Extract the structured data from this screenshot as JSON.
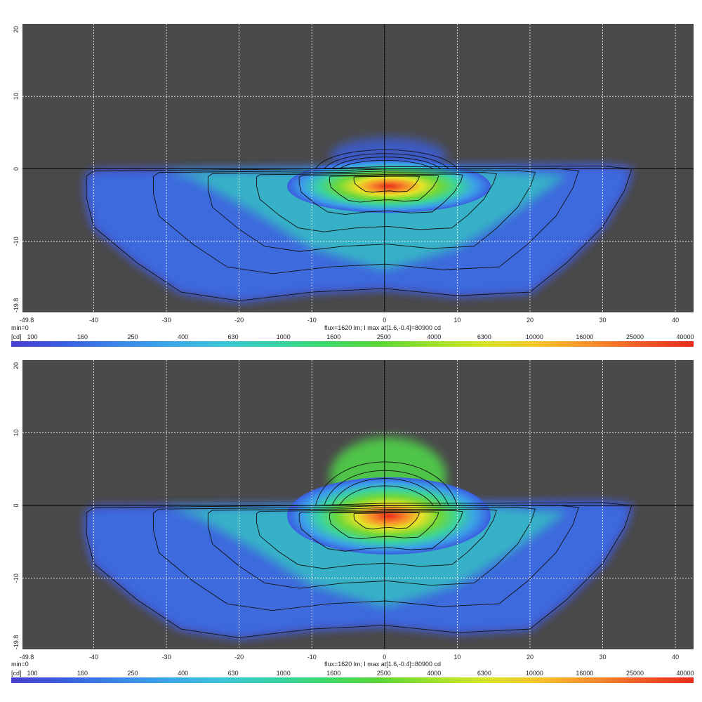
{
  "chart_data": [
    {
      "type": "heatmap",
      "panel": "top",
      "x_ticks": [
        "-49.8",
        "-40",
        "-30",
        "-20",
        "-10",
        "0",
        "10",
        "20",
        "30",
        "40"
      ],
      "y_ticks": [
        "20",
        "10",
        "0",
        "-10",
        "-19.8"
      ],
      "xlim": [
        -49.8,
        42.5
      ],
      "ylim": [
        -19.8,
        20
      ],
      "grid": true,
      "footer_min": "min=0",
      "footer_flux": "flux=1620 lm; I max at[1.6,-0.4]=80900 cd",
      "legend_unit": "[cd]",
      "legend_ticks": [
        "100",
        "160",
        "250",
        "400",
        "630",
        "1000",
        "1600",
        "2500",
        "4000",
        "6300",
        "10000",
        "16000",
        "25000",
        "40000"
      ],
      "hotspot": {
        "x": 1.6,
        "y": -0.4
      },
      "upper_lobe_top": 3.5,
      "colors": {
        "background": "#4a4a4a",
        "grid": "#ffffff"
      }
    },
    {
      "type": "heatmap",
      "panel": "bottom",
      "x_ticks": [
        "-49.8",
        "-40",
        "-30",
        "-20",
        "-10",
        "0",
        "10",
        "20",
        "30",
        "40"
      ],
      "y_ticks": [
        "20",
        "10",
        "0",
        "-10",
        "-19.8"
      ],
      "xlim": [
        -49.8,
        42.5
      ],
      "ylim": [
        -19.8,
        20
      ],
      "grid": true,
      "footer_min": "min=0",
      "footer_flux": "flux=1620 lm; I max at[1.6,-0.4]=80900 cd",
      "legend_unit": "[cd]",
      "legend_ticks": [
        "100",
        "160",
        "250",
        "400",
        "630",
        "1000",
        "1600",
        "2500",
        "4000",
        "6300",
        "10000",
        "16000",
        "25000",
        "40000"
      ],
      "hotspot": {
        "x": 1.6,
        "y": -0.4
      },
      "upper_lobe_top": 8.0,
      "colors": {
        "background": "#4a4a4a",
        "grid": "#ffffff"
      }
    }
  ]
}
